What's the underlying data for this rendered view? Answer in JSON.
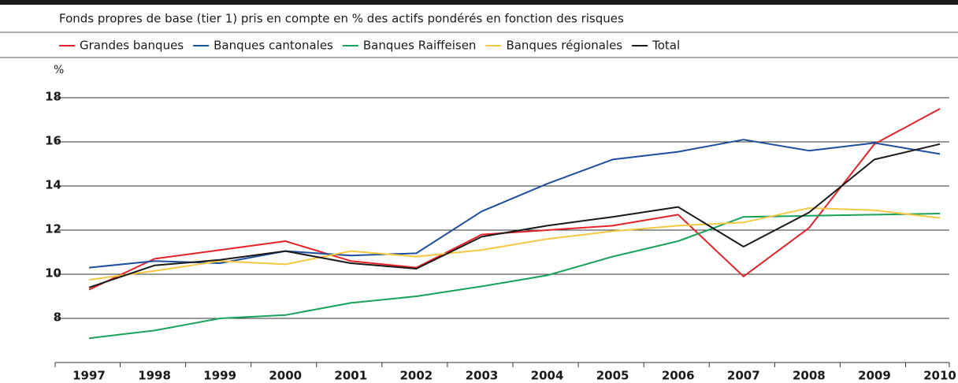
{
  "chart_data": {
    "type": "line",
    "subtitle": "Fonds propres de base (tier 1) pris en compte en % des actifs pondérés en fonction des risques",
    "y_unit": "%",
    "categories": [
      "1997",
      "1998",
      "1999",
      "2000",
      "2001",
      "2002",
      "2003",
      "2004",
      "2005",
      "2006",
      "2007",
      "2008",
      "2009",
      "2010"
    ],
    "series": [
      {
        "name": "Grandes banques",
        "color": "#e3232a",
        "values": [
          9.3,
          10.7,
          11.1,
          11.5,
          10.6,
          10.3,
          11.8,
          12.0,
          12.2,
          12.7,
          9.9,
          12.1,
          15.9,
          17.5
        ]
      },
      {
        "name": "Banques cantonales",
        "color": "#1f4e9c",
        "values": [
          10.3,
          10.6,
          10.5,
          11.05,
          10.85,
          10.95,
          12.85,
          14.1,
          15.2,
          15.55,
          16.1,
          15.6,
          15.95,
          15.45
        ]
      },
      {
        "name": "Banques Raiffeisen",
        "color": "#18a25a",
        "values": [
          7.1,
          7.45,
          8.0,
          8.15,
          8.7,
          9.0,
          9.45,
          9.95,
          10.8,
          11.5,
          12.6,
          12.65,
          12.7,
          12.75
        ]
      },
      {
        "name": "Banques régionales",
        "color": "#f5c842",
        "values": [
          9.75,
          10.15,
          10.6,
          10.45,
          11.05,
          10.8,
          11.1,
          11.6,
          11.95,
          12.2,
          12.35,
          13.0,
          12.9,
          12.55
        ]
      },
      {
        "name": "Total",
        "color": "#1a1a1a",
        "values": [
          9.4,
          10.4,
          10.65,
          11.05,
          10.5,
          10.25,
          11.7,
          12.2,
          12.6,
          13.05,
          11.25,
          12.8,
          15.2,
          15.9
        ]
      }
    ],
    "ylim": [
      6,
      18
    ],
    "yticks": [
      8,
      10,
      12,
      14,
      16,
      18
    ],
    "grid": true
  }
}
